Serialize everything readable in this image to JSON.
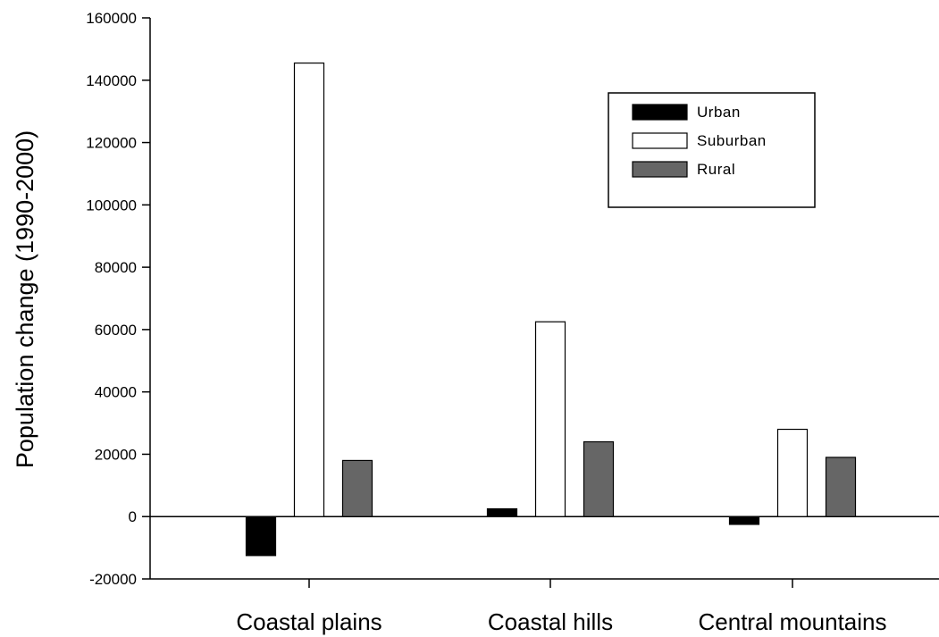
{
  "chart_data": {
    "type": "bar",
    "title": "",
    "xlabel": "",
    "ylabel": "Population change (1990-2000)",
    "categories": [
      "Coastal plains",
      "Coastal hills",
      "Central mountains"
    ],
    "series": [
      {
        "name": "Urban",
        "values": [
          -12500,
          2500,
          -2500
        ],
        "color": "#000000"
      },
      {
        "name": "Suburban",
        "values": [
          145500,
          62500,
          28000
        ],
        "color": "#ffffff"
      },
      {
        "name": "Rural",
        "values": [
          18000,
          24000,
          19000
        ],
        "color": "#666666"
      }
    ],
    "ylim": [
      -20000,
      160000
    ],
    "yticks": [
      -20000,
      0,
      20000,
      40000,
      60000,
      80000,
      100000,
      120000,
      140000,
      160000
    ],
    "ytick_labels": [
      "-20000",
      "0",
      "20000",
      "40000",
      "60000",
      "80000",
      "100000",
      "120000",
      "140000",
      "160000"
    ],
    "legend_position": "top-right",
    "grid": false
  }
}
